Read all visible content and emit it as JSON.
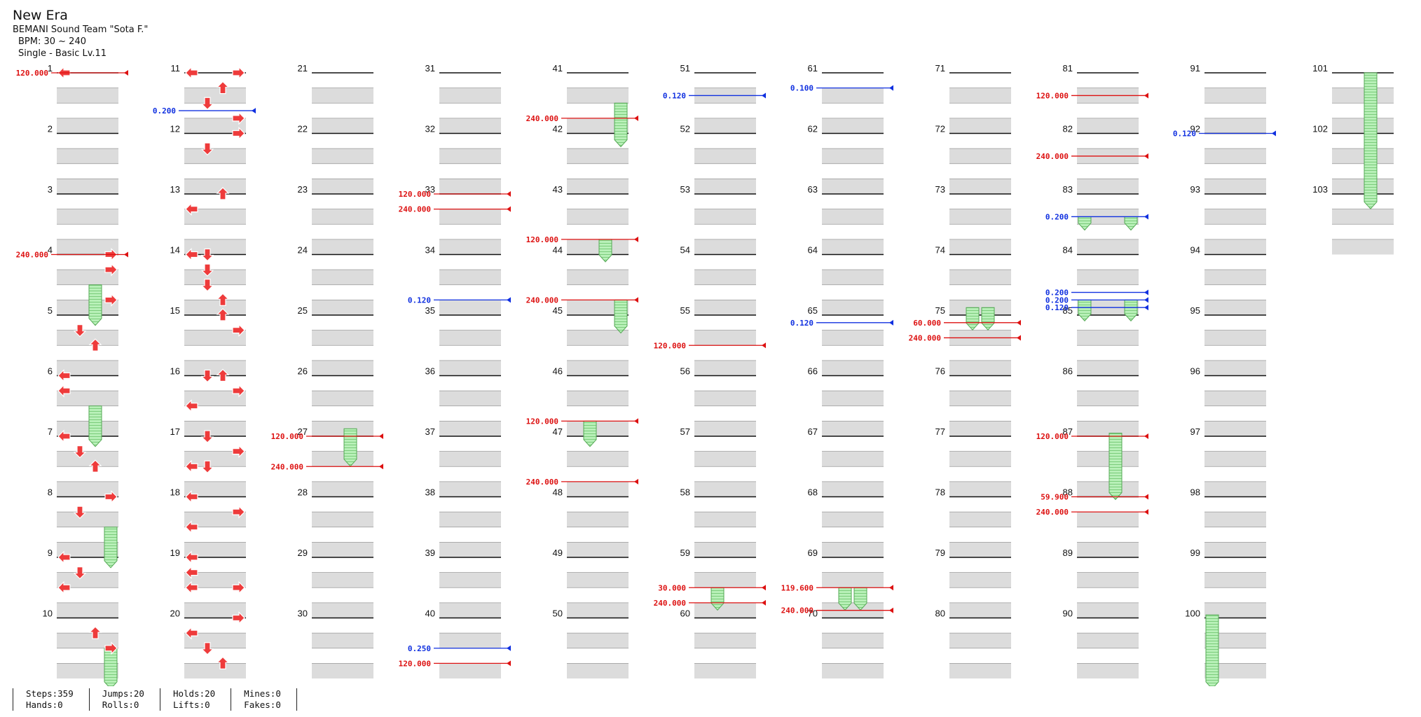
{
  "song": {
    "title": "New Era",
    "artist": "BEMANI Sound Team \"Sota F.\"",
    "bpm_text": "BPM: 30 ~ 240",
    "difficulty": "Single - Basic  Lv.11"
  },
  "stats": {
    "steps": "Steps:359",
    "hands": "Hands:0",
    "jumps": "Jumps:20",
    "rolls": "Rolls:0",
    "holds": "Holds:20",
    "lifts": "Lifts:0",
    "mines": "Mines:0",
    "fakes": "Fakes:0"
  },
  "colors": {
    "quarter_note": "#ee3b3b",
    "eighth_note": "#3d6df0",
    "hold_body": "#9ee59e",
    "beat_shade": "#dcdcdc",
    "bpm_red": "#dd1111",
    "stop_blue": "#1030e0"
  },
  "chart_data": {
    "type": "step_chart",
    "measures": [
      "1",
      "2",
      "3",
      "4",
      "5",
      "6",
      "7",
      "8",
      "9",
      "10",
      "11",
      "12",
      "13",
      "14",
      "15",
      "16",
      "17",
      "18",
      "19",
      "20",
      "21",
      "22",
      "23",
      "24",
      "25",
      "26",
      "27",
      "28",
      "29",
      "30",
      "31",
      "32",
      "33",
      "34",
      "35",
      "36",
      "37",
      "38",
      "39",
      "40",
      "41",
      "42",
      "43",
      "44",
      "45",
      "46",
      "47",
      "48",
      "49",
      "50",
      "51",
      "52",
      "53",
      "54",
      "55",
      "56",
      "57",
      "58",
      "59",
      "60",
      "61",
      "62",
      "63",
      "64",
      "65",
      "66",
      "67",
      "68",
      "69",
      "70",
      "71",
      "72",
      "73",
      "74",
      "75",
      "76",
      "77",
      "78",
      "79",
      "80",
      "81",
      "82",
      "83",
      "84",
      "85",
      "86",
      "87",
      "88",
      "89",
      "90",
      "91",
      "92",
      "93",
      "94",
      "95",
      "96",
      "97",
      "98",
      "99",
      "100",
      "101",
      "102",
      "103"
    ],
    "bpm_changes": [
      {
        "measure": 1,
        "beat": 0,
        "value": "120.000"
      },
      {
        "measure": 4,
        "beat": 0,
        "value": "240.000"
      },
      {
        "measure": 27,
        "beat": 0,
        "value": "120.000"
      },
      {
        "measure": 27,
        "beat": 2,
        "value": "240.000"
      },
      {
        "measure": 33,
        "beat": 0,
        "value": "120.000"
      },
      {
        "measure": 33,
        "beat": 1,
        "value": "240.000"
      },
      {
        "measure": 40,
        "beat": 3,
        "value": "120.000"
      },
      {
        "measure": 41,
        "beat": 3,
        "value": "240.000"
      },
      {
        "measure": 43,
        "beat": 3,
        "value": "120.000"
      },
      {
        "measure": 44,
        "beat": 3,
        "value": "240.000"
      },
      {
        "measure": 46,
        "beat": 3,
        "value": "120.000"
      },
      {
        "measure": 47,
        "beat": 3,
        "value": "240.000"
      },
      {
        "measure": 55,
        "beat": 2,
        "value": "120.000"
      },
      {
        "measure": 59,
        "beat": 2,
        "value": "30.000"
      },
      {
        "measure": 59,
        "beat": 3,
        "value": "240.000"
      },
      {
        "measure": 69,
        "beat": 2,
        "value": "119.600"
      },
      {
        "measure": 69,
        "beat": 3.5,
        "value": "240.000"
      },
      {
        "measure": 75,
        "beat": 0.5,
        "value": "60.000"
      },
      {
        "measure": 75,
        "beat": 1.5,
        "value": "240.000"
      },
      {
        "measure": 81,
        "beat": 1.5,
        "value": "120.000"
      },
      {
        "measure": 82,
        "beat": 1.5,
        "value": "240.000"
      },
      {
        "measure": 87,
        "beat": 0,
        "value": "120.000"
      },
      {
        "measure": 88,
        "beat": 0,
        "value": "59.900"
      },
      {
        "measure": 88,
        "beat": 1,
        "value": "240.000"
      }
    ],
    "stops": [
      {
        "measure": 11,
        "beat": 2.5,
        "value": "0.200"
      },
      {
        "measure": 34,
        "beat": 3,
        "value": "0.120"
      },
      {
        "measure": 51,
        "beat": 1.5,
        "value": "0.120"
      },
      {
        "measure": 61,
        "beat": 1,
        "value": "0.100"
      },
      {
        "measure": 65,
        "beat": 0.5,
        "value": "0.120"
      },
      {
        "measure": 83,
        "beat": 1.5,
        "value": "0.200"
      },
      {
        "measure": 84,
        "beat": 2.5,
        "value": "0.200"
      },
      {
        "measure": 84,
        "beat": 3,
        "value": "0.200"
      },
      {
        "measure": 84,
        "beat": 3.5,
        "value": "0.120"
      },
      {
        "measure": 92,
        "beat": 0,
        "value": "0.120"
      },
      {
        "measure": 40,
        "beat": 2,
        "value": "0.250"
      }
    ],
    "holds": [
      {
        "measure": 4,
        "beat": 2,
        "end_measure": 5,
        "end_beat": 0.5,
        "lane": 2
      },
      {
        "measure": 6,
        "beat": 2,
        "end_measure": 7,
        "end_beat": 0.5,
        "lane": 2
      },
      {
        "measure": 8,
        "beat": 2,
        "end_measure": 9,
        "end_beat": 0.5,
        "lane": 3
      },
      {
        "measure": 10,
        "beat": 2,
        "end_measure": 10,
        "end_beat": 4.5,
        "lane": 3
      },
      {
        "measure": 26,
        "beat": 3.5,
        "end_measure": 27,
        "end_beat": 1.8,
        "lane": 2
      },
      {
        "measure": 41,
        "beat": 2,
        "end_measure": 42,
        "end_beat": 0.7,
        "lane": 3
      },
      {
        "measure": 43,
        "beat": 3,
        "end_measure": 44,
        "end_beat": 0.3,
        "lane": 2
      },
      {
        "measure": 44,
        "beat": 3,
        "end_measure": 45,
        "end_beat": 1,
        "lane": 3
      },
      {
        "measure": 46,
        "beat": 3,
        "end_measure": 47,
        "end_beat": 0.5,
        "lane": 1
      },
      {
        "measure": 59,
        "beat": 2,
        "end_measure": 59,
        "end_beat": 3.3,
        "lane": 1
      },
      {
        "measure": 69,
        "beat": 2,
        "end_measure": 69,
        "end_beat": 3.3,
        "lane": 1
      },
      {
        "measure": 69,
        "beat": 2,
        "end_measure": 69,
        "end_beat": 3.3,
        "lane": 2
      },
      {
        "measure": 74,
        "beat": 3.5,
        "end_measure": 75,
        "end_beat": 0.8,
        "lane": 1
      },
      {
        "measure": 74,
        "beat": 3.5,
        "end_measure": 75,
        "end_beat": 0.8,
        "lane": 2
      },
      {
        "measure": 83,
        "beat": 1.5,
        "end_measure": 83,
        "end_beat": 2.2,
        "lane": 0
      },
      {
        "measure": 83,
        "beat": 1.5,
        "end_measure": 83,
        "end_beat": 2.2,
        "lane": 3
      },
      {
        "measure": 84,
        "beat": 3,
        "end_measure": 85,
        "end_beat": 0.2,
        "lane": 0
      },
      {
        "measure": 84,
        "beat": 3,
        "end_measure": 85,
        "end_beat": 0.2,
        "lane": 3
      },
      {
        "measure": 86,
        "beat": 3.8,
        "end_measure": 88,
        "end_beat": 0,
        "lane": 2
      },
      {
        "measure": 99,
        "beat": 3.8,
        "end_measure": 100,
        "end_beat": 4.5,
        "lane": 0
      },
      {
        "measure": 101,
        "beat": 0,
        "end_measure": 103,
        "end_beat": 0.8,
        "lane": 2
      }
    ],
    "notes": [
      {
        "m": 1,
        "b": 0,
        "l": 0
      },
      {
        "m": 4,
        "b": 0,
        "l": 3
      },
      {
        "m": 4,
        "b": 1,
        "l": 3
      },
      {
        "m": 4,
        "b": 3,
        "l": 3
      },
      {
        "m": 5,
        "b": 1,
        "l": 1
      },
      {
        "m": 5,
        "b": 2,
        "l": 2
      },
      {
        "m": 6,
        "b": 0,
        "l": 0
      },
      {
        "m": 6,
        "b": 1,
        "l": 0
      },
      {
        "m": 7,
        "b": 0,
        "l": 0
      },
      {
        "m": 7,
        "b": 1,
        "l": 1
      },
      {
        "m": 7,
        "b": 2,
        "l": 2
      },
      {
        "m": 8,
        "b": 0,
        "l": 3
      },
      {
        "m": 8,
        "b": 1,
        "l": 1
      },
      {
        "m": 9,
        "b": 0,
        "l": 0
      },
      {
        "m": 9,
        "b": 1,
        "l": 1
      },
      {
        "m": 9,
        "b": 2,
        "l": 0
      },
      {
        "m": 10,
        "b": 1,
        "l": 2
      },
      {
        "m": 10,
        "b": 2,
        "l": 3
      },
      {
        "m": 11,
        "b": 0,
        "l": 0
      },
      {
        "m": 11,
        "b": 0,
        "l": 3
      },
      {
        "m": 11,
        "b": 1,
        "l": 2
      },
      {
        "m": 11,
        "b": 2,
        "l": 1
      },
      {
        "m": 11,
        "b": 3,
        "l": 3
      },
      {
        "m": 12,
        "b": 0,
        "l": 3
      },
      {
        "m": 12,
        "b": 1,
        "l": 1
      },
      {
        "m": 13,
        "b": 0,
        "l": 2
      },
      {
        "m": 13,
        "b": 0,
        "l": 2
      },
      {
        "m": 13,
        "b": 1,
        "l": 0
      },
      {
        "m": 14,
        "b": 0,
        "l": 0
      },
      {
        "m": 14,
        "b": 0,
        "l": 1
      },
      {
        "m": 14,
        "b": 1,
        "l": 1
      },
      {
        "m": 14,
        "b": 2,
        "l": 1
      },
      {
        "m": 14,
        "b": 3,
        "l": 2
      },
      {
        "m": 15,
        "b": 0,
        "l": 2
      },
      {
        "m": 15,
        "b": 1,
        "l": 3
      },
      {
        "m": 16,
        "b": 0,
        "l": 2
      },
      {
        "m": 16,
        "b": 0,
        "l": 1
      },
      {
        "m": 16,
        "b": 1,
        "l": 3
      },
      {
        "m": 16,
        "b": 2,
        "l": 0
      },
      {
        "m": 17,
        "b": 0,
        "l": 1
      },
      {
        "m": 17,
        "b": 1,
        "l": 3
      },
      {
        "m": 17,
        "b": 2,
        "l": 0
      },
      {
        "m": 17,
        "b": 2,
        "l": 1
      },
      {
        "m": 18,
        "b": 0,
        "l": 0
      },
      {
        "m": 18,
        "b": 1,
        "l": 3
      },
      {
        "m": 18,
        "b": 2,
        "l": 0
      },
      {
        "m": 19,
        "b": 0,
        "l": 0
      },
      {
        "m": 19,
        "b": 1,
        "l": 0
      },
      {
        "m": 19,
        "b": 2,
        "l": 0
      },
      {
        "m": 19,
        "b": 2,
        "l": 3
      },
      {
        "m": 20,
        "b": 0,
        "l": 3
      },
      {
        "m": 20,
        "b": 1,
        "l": 0
      },
      {
        "m": 20,
        "b": 2,
        "l": 1
      },
      {
        "m": 20,
        "b": 3,
        "l": 2
      }
    ]
  }
}
